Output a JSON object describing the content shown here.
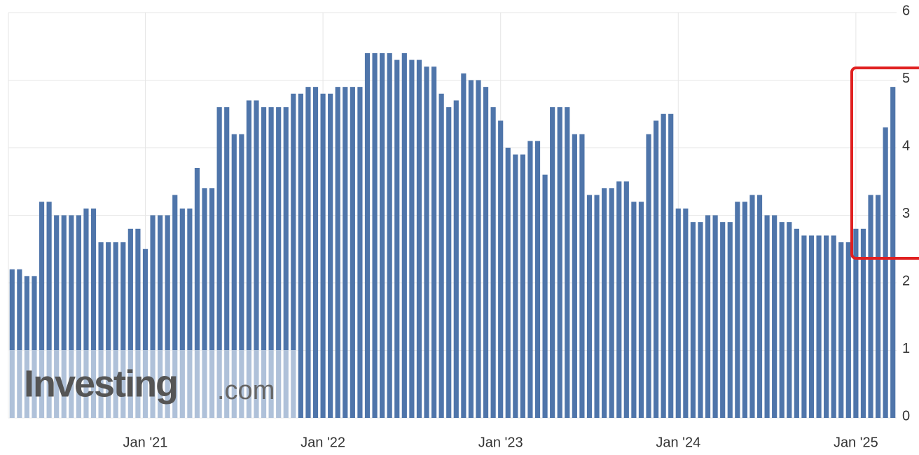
{
  "chart_data": {
    "type": "bar",
    "categories": [
      null,
      null,
      null,
      null,
      null,
      null,
      null,
      null,
      null,
      null,
      null,
      null,
      null,
      null,
      null,
      null,
      null,
      null,
      "Jan '21",
      null,
      null,
      null,
      null,
      null,
      null,
      null,
      null,
      null,
      null,
      null,
      null,
      null,
      null,
      null,
      null,
      null,
      null,
      null,
      null,
      null,
      null,
      null,
      "Jan '22",
      null,
      null,
      null,
      null,
      null,
      null,
      null,
      null,
      null,
      null,
      null,
      null,
      null,
      null,
      null,
      null,
      null,
      null,
      null,
      null,
      null,
      null,
      null,
      "Jan '23",
      null,
      null,
      null,
      null,
      null,
      null,
      null,
      null,
      null,
      null,
      null,
      null,
      null,
      null,
      null,
      null,
      null,
      null,
      null,
      null,
      null,
      null,
      null,
      "Jan '24",
      null,
      null,
      null,
      null,
      null,
      null,
      null,
      null,
      null,
      null,
      null,
      null,
      null,
      null,
      null,
      null,
      null,
      null,
      null,
      null,
      null,
      null,
      null,
      "Jan '25",
      null,
      null,
      null,
      null,
      null
    ],
    "values": [
      2.2,
      2.2,
      2.1,
      2.1,
      3.2,
      3.2,
      3.0,
      3.0,
      3.0,
      3.0,
      3.1,
      3.1,
      2.6,
      2.6,
      2.6,
      2.6,
      2.8,
      2.8,
      2.5,
      3.0,
      3.0,
      3.0,
      3.3,
      3.1,
      3.1,
      3.7,
      3.4,
      3.4,
      4.6,
      4.6,
      4.2,
      4.2,
      4.7,
      4.7,
      4.6,
      4.6,
      4.6,
      4.6,
      4.8,
      4.8,
      4.9,
      4.9,
      4.8,
      4.8,
      4.9,
      4.9,
      4.9,
      4.9,
      5.4,
      5.4,
      5.4,
      5.4,
      5.3,
      5.4,
      5.3,
      5.3,
      5.2,
      5.2,
      4.8,
      4.6,
      4.7,
      5.1,
      5.0,
      5.0,
      4.9,
      4.6,
      4.4,
      4.0,
      3.9,
      3.9,
      4.1,
      4.1,
      3.6,
      4.6,
      4.6,
      4.6,
      4.2,
      4.2,
      3.3,
      3.3,
      3.4,
      3.4,
      3.5,
      3.5,
      3.2,
      3.2,
      4.2,
      4.4,
      4.5,
      4.5,
      3.1,
      3.1,
      2.9,
      2.9,
      3.0,
      3.0,
      2.9,
      2.9,
      3.2,
      3.2,
      3.3,
      3.3,
      3.0,
      3.0,
      2.9,
      2.9,
      2.8,
      2.7,
      2.7,
      2.7,
      2.7,
      2.7,
      2.6,
      2.6,
      2.8,
      2.8,
      3.3,
      3.3,
      4.3,
      4.9
    ],
    "color": "#4f75aa",
    "ylim": [
      0,
      6
    ],
    "yticks": [
      0,
      1,
      2,
      3,
      4,
      5,
      6
    ],
    "grid": true,
    "watermark": {
      "brand": "Investing",
      "suffix": ".com"
    }
  }
}
